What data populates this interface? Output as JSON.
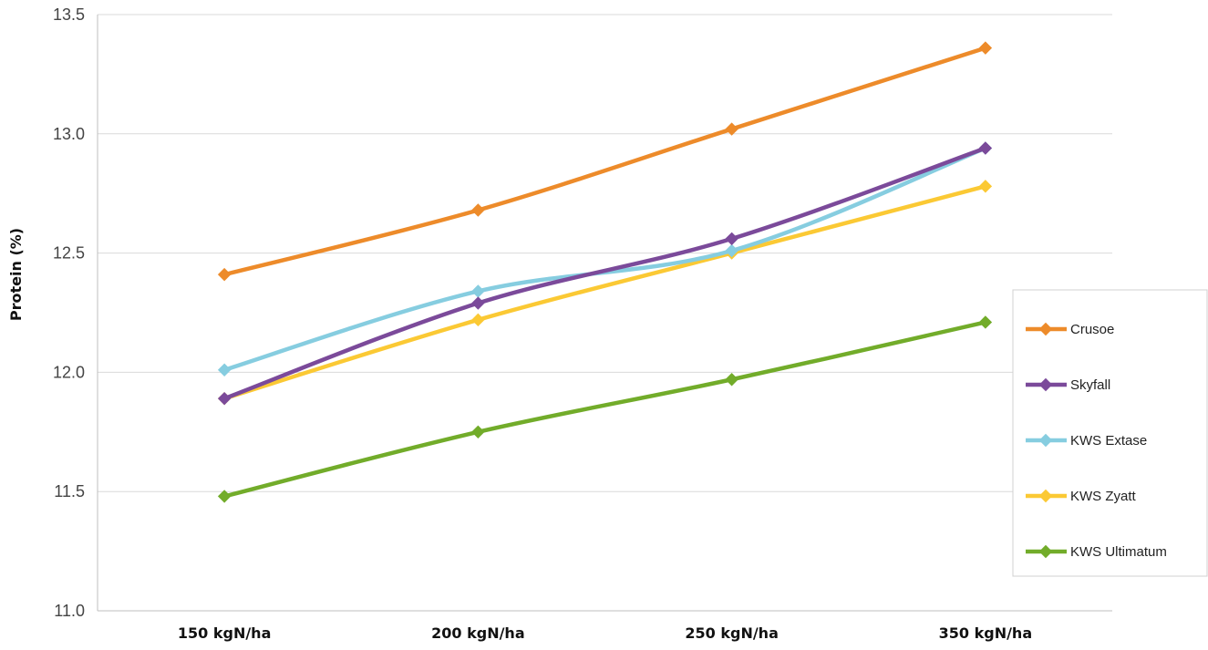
{
  "chart_data": {
    "type": "line",
    "categories": [
      "150 kgN/ha",
      "200 kgN/ha",
      "250 kgN/ha",
      "350 kgN/ha"
    ],
    "ylabel": "Protein (%)",
    "ylim": [
      11.0,
      13.5
    ],
    "yticks": [
      "11.0",
      "11.5",
      "12.0",
      "12.5",
      "13.0",
      "13.5"
    ],
    "grid": true,
    "legend_position": "right",
    "series": [
      {
        "name": "Crusoe",
        "color": "#ED8B2A",
        "values": [
          12.41,
          12.68,
          13.02,
          13.36
        ]
      },
      {
        "name": "Skyfall",
        "color": "#7B4A9A",
        "values": [
          11.89,
          12.29,
          12.56,
          12.94
        ]
      },
      {
        "name": "KWS Extase",
        "color": "#86CDE0",
        "values": [
          12.01,
          12.34,
          12.51,
          12.94
        ]
      },
      {
        "name": "KWS Zyatt",
        "color": "#FBC934",
        "values": [
          11.89,
          12.22,
          12.5,
          12.78
        ]
      },
      {
        "name": "KWS Ultimatum",
        "color": "#72AC2A",
        "values": [
          11.48,
          11.75,
          11.97,
          12.21
        ]
      }
    ]
  }
}
